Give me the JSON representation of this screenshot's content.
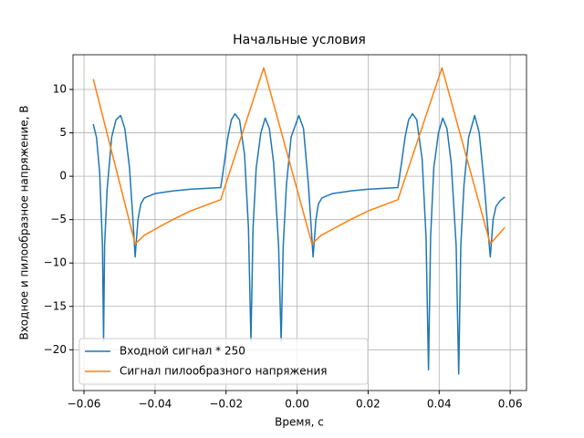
{
  "chart_data": {
    "type": "line",
    "title": "Начальные условия",
    "xlabel": "Время, с",
    "ylabel": "Входное и пилообразное напряжение, В",
    "grid": true,
    "legend": "lower left",
    "xlim": [
      -0.0631,
      0.0646
    ],
    "ylim": [
      -24.7,
      14.0
    ],
    "xticks": [
      {
        "value": -0.06,
        "label": "−0.06"
      },
      {
        "value": -0.04,
        "label": "−0.04"
      },
      {
        "value": -0.02,
        "label": "−0.02"
      },
      {
        "value": 0,
        "label": "0.00"
      },
      {
        "value": 0.02,
        "label": "0.02"
      },
      {
        "value": 0.04,
        "label": "0.04"
      },
      {
        "value": 0.06,
        "label": "0.06"
      }
    ],
    "yticks": [
      {
        "value": -20,
        "label": "−20"
      },
      {
        "value": -15,
        "label": "−15"
      },
      {
        "value": -10,
        "label": "−10"
      },
      {
        "value": -5,
        "label": "−5"
      },
      0,
      5,
      10
    ],
    "series": [
      {
        "name": "Входной сигнал * 250",
        "color": "#1f77b4",
        "x": [
          -0.0574,
          -0.0565,
          -0.0556,
          -0.0548,
          -0.0545,
          -0.0542,
          -0.0535,
          -0.0522,
          -0.051,
          -0.0497,
          -0.0485,
          -0.0472,
          -0.0463,
          -0.0456,
          -0.0448,
          -0.044,
          -0.043,
          -0.04,
          -0.035,
          -0.03,
          -0.0215,
          -0.0205,
          -0.0195,
          -0.0185,
          -0.0175,
          -0.0162,
          -0.0148,
          -0.0137,
          -0.013,
          -0.0124,
          -0.0115,
          -0.0102,
          -0.009,
          -0.0078,
          -0.0066,
          -0.0052,
          -0.0045,
          -0.0039,
          -0.003,
          -0.0017,
          0.0005,
          0.0018,
          0.0032,
          0.004,
          0.0045,
          0.0053,
          0.006,
          0.007,
          0.01,
          0.015,
          0.02,
          0.0284,
          0.0294,
          0.0304,
          0.0314,
          0.0325,
          0.0337,
          0.0352,
          0.0363,
          0.037,
          0.0376,
          0.0385,
          0.0398,
          0.041,
          0.0422,
          0.0434,
          0.0448,
          0.0455,
          0.0461,
          0.047,
          0.0483,
          0.05,
          0.0513,
          0.0527,
          0.0536,
          0.0544,
          0.0552,
          0.056,
          0.0572,
          0.0585
        ],
        "values": [
          6.0,
          4.5,
          0.5,
          -8,
          -19,
          -8,
          -1.5,
          4.5,
          6.5,
          7.0,
          5.5,
          1.0,
          -4.5,
          -9.3,
          -5.0,
          -3.2,
          -2.5,
          -2.0,
          -1.7,
          -1.5,
          -1.3,
          1.5,
          4.5,
          6.5,
          7.2,
          6.5,
          2.5,
          -6,
          -19,
          -6,
          1.0,
          5.0,
          6.7,
          5.5,
          1.5,
          -8,
          -19,
          -8,
          -1.0,
          4.5,
          7.0,
          5.5,
          -1.0,
          -6,
          -9.3,
          -5.0,
          -3.2,
          -2.5,
          -2.0,
          -1.7,
          -1.5,
          -1.3,
          1.5,
          4.5,
          6.5,
          7.2,
          6.5,
          2.0,
          -7,
          -22.3,
          -7,
          1.0,
          5.0,
          6.7,
          5.5,
          1.5,
          -8,
          -22.8,
          -8,
          -1.0,
          4.5,
          7.0,
          5.0,
          -1.0,
          -5.5,
          -9.3,
          -5.0,
          -3.5,
          -2.8,
          -2.4
        ]
      },
      {
        "name": "Сигнал пилообразного напряжения",
        "color": "#ff7f0e",
        "x": [
          -0.0574,
          -0.0456,
          -0.043,
          -0.04,
          -0.035,
          -0.03,
          -0.0215,
          -0.0094,
          0.0042,
          0.0068,
          0.01,
          0.015,
          0.02,
          0.0284,
          0.0408,
          0.0544,
          0.0585
        ],
        "values": [
          11.2,
          -7.8,
          -6.8,
          -6.1,
          -5.0,
          -4.0,
          -2.7,
          12.5,
          -7.8,
          -6.8,
          -6.1,
          -5.0,
          -4.0,
          -2.7,
          12.5,
          -7.8,
          -5.9
        ]
      }
    ]
  }
}
